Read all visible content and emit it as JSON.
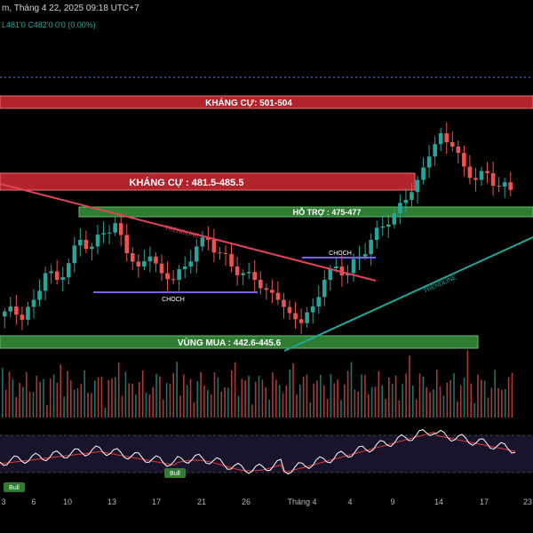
{
  "header": {
    "line1": "m, Tháng 4 22, 2025 09:18 UTC+7",
    "line2": "L481'0  C482'0  0'0 (0.00%)"
  },
  "colors": {
    "background": "#000000",
    "bull_candle": "#26a69a",
    "bear_candle": "#ef5350",
    "resistance_fill": "#b2232c",
    "support_fill": "#2e7d32",
    "trendline_red": "#e0435a",
    "trendline_teal": "#1fa89a",
    "choch_line": "#7b5cff",
    "rsi_line": "#ffffff",
    "rsi_ma": "#e53935",
    "rsi_band": "#2a1f4a",
    "dotted_line": "#3f51b5",
    "bull_label": "#2e7d32"
  },
  "zones": {
    "khang_cu_top": "KHÁNG CỰ: 501-504",
    "khang_cu_mid": "KHÁNG CỰ : 481.5-485.5",
    "ho_tro": "HỖ TRỢ : 475-477",
    "vung_mua": "VÙNG MUA : 442.6-445.6"
  },
  "annotations": {
    "trendline_down": "TRENDLINE",
    "trendline_up": "TRENDLINE",
    "choch_left": "CHOCH",
    "choch_right": "CHOCH",
    "bull_1": "Bull",
    "bull_2": "Bull"
  },
  "chart_data": {
    "type": "candlestick",
    "x_ticks": [
      "3",
      "6",
      "10",
      "13",
      "17",
      "21",
      "26",
      "Tháng 4",
      "4",
      "9",
      "14",
      "17",
      "23"
    ],
    "price_levels": {
      "resistance_1": [
        501,
        504
      ],
      "resistance_2": [
        481.5,
        485.5
      ],
      "support": [
        475,
        477
      ],
      "buy_zone": [
        442.6,
        445.6
      ]
    },
    "candles_close_approx": [
      450,
      446,
      452,
      460,
      458,
      463,
      470,
      468,
      472,
      475,
      466,
      462,
      465,
      460,
      458,
      462,
      468,
      470,
      466,
      462,
      460,
      458,
      455,
      452,
      448,
      445,
      450,
      458,
      462,
      460,
      465,
      470,
      474,
      478,
      482,
      488,
      495,
      502,
      498,
      492,
      488,
      490,
      486,
      485
    ]
  }
}
